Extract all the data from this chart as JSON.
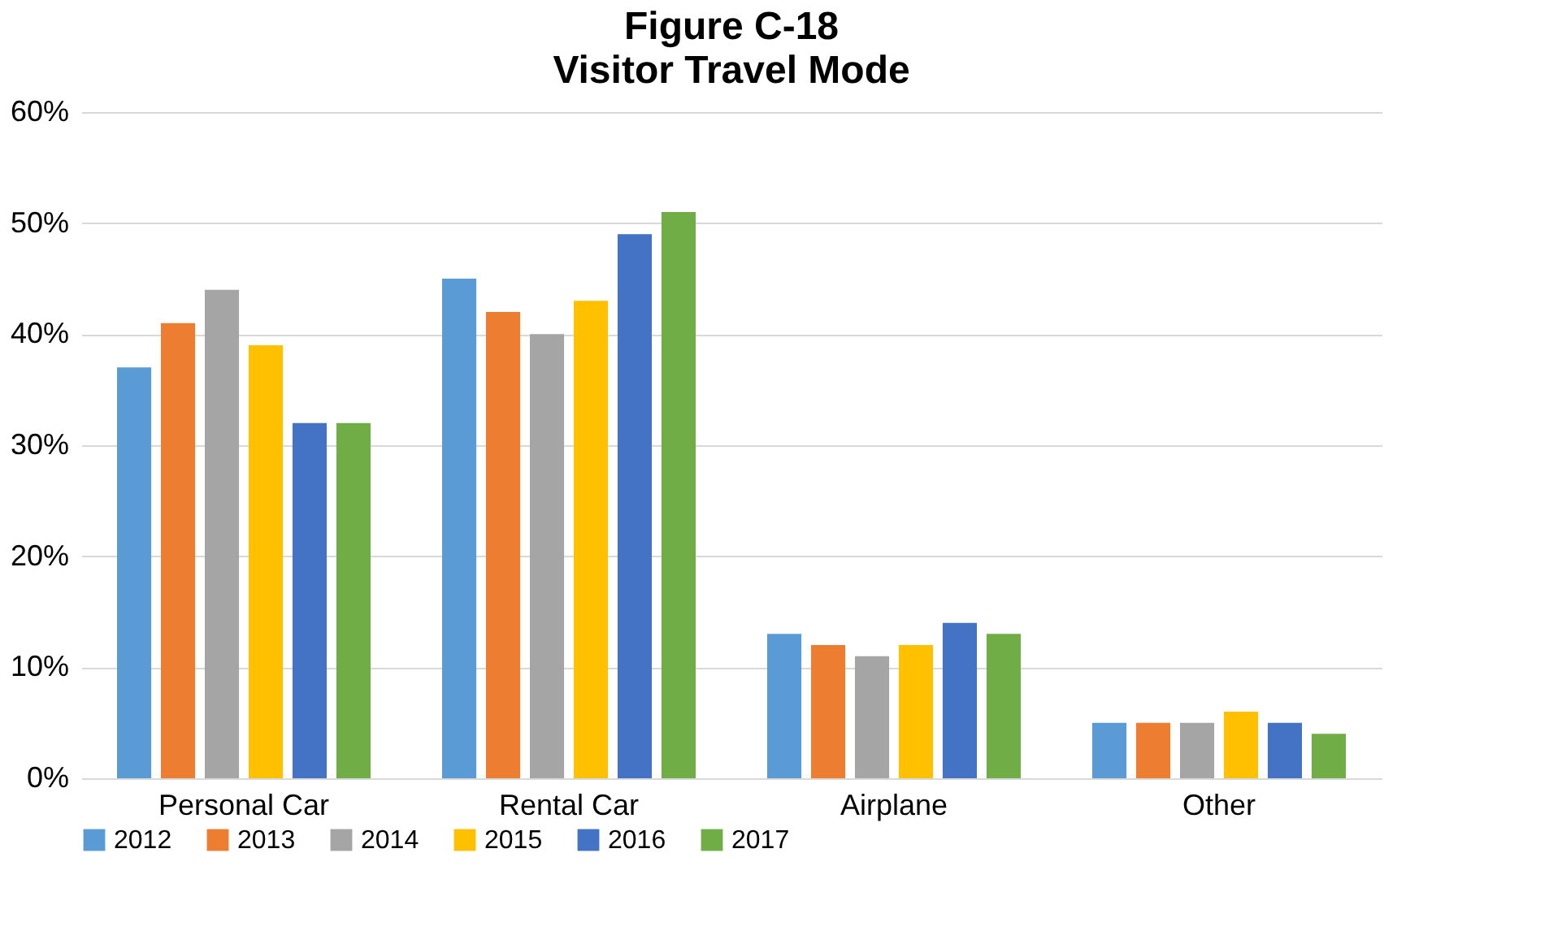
{
  "chart_data": {
    "type": "bar",
    "title": "Figure C-18",
    "subtitle": "Visitor Travel Mode",
    "categories": [
      "Personal Car",
      "Rental Car",
      "Airplane",
      "Other"
    ],
    "series": [
      {
        "name": "2012",
        "color": "#5b9bd5",
        "values": [
          37,
          45,
          13,
          5
        ]
      },
      {
        "name": "2013",
        "color": "#ed7d31",
        "values": [
          41,
          42,
          12,
          5
        ]
      },
      {
        "name": "2014",
        "color": "#a5a5a5",
        "values": [
          44,
          40,
          11,
          5
        ]
      },
      {
        "name": "2015",
        "color": "#ffc000",
        "values": [
          39,
          43,
          12,
          6
        ]
      },
      {
        "name": "2016",
        "color": "#4472c4",
        "values": [
          32,
          49,
          14,
          5
        ]
      },
      {
        "name": "2017",
        "color": "#70ad47",
        "values": [
          32,
          51,
          13,
          4
        ]
      }
    ],
    "ylim": [
      0,
      60
    ],
    "yticks": [
      {
        "value": 0,
        "label": "0%"
      },
      {
        "value": 10,
        "label": "10%"
      },
      {
        "value": 20,
        "label": "20%"
      },
      {
        "value": 30,
        "label": "30%"
      },
      {
        "value": 40,
        "label": "40%"
      },
      {
        "value": 50,
        "label": "50%"
      },
      {
        "value": 60,
        "label": "60%"
      }
    ],
    "grid": "y",
    "legend": "bottom"
  }
}
